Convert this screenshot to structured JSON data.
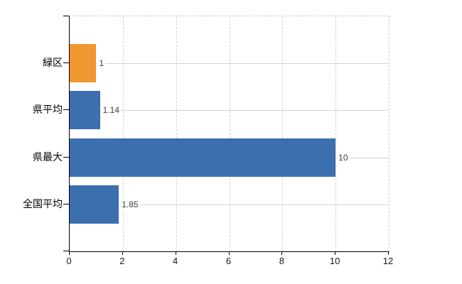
{
  "colors": {
    "background": "#ffffff",
    "bar_blue": "#3b6fae",
    "bar_orange": "#ef9730",
    "axis_line": "#000000",
    "grid_solid": "#d4d4d4",
    "grid_dashed": "#d2d2d2",
    "category_text": "#000000",
    "value_text": "#3c3c3c",
    "tick_text": "#1a1a1a"
  },
  "chart_data": {
    "type": "bar",
    "orientation": "horizontal",
    "title": "",
    "xlabel": "",
    "ylabel": "",
    "legend": "none",
    "grid": "vertical dashed at x ticks; horizontal solid at category centers",
    "categories": [
      "緑区",
      "県平均",
      "県最大",
      "全国平均"
    ],
    "values": [
      1,
      1.14,
      10,
      1.85
    ],
    "value_labels": [
      "1",
      "1.14",
      "10",
      "1.85"
    ],
    "bar_colors": [
      "#ef9730",
      "#3b6fae",
      "#3b6fae",
      "#3b6fae"
    ],
    "xlim": [
      0,
      12
    ],
    "x_ticks": [
      0,
      2,
      4,
      6,
      8,
      10,
      12
    ],
    "x_tick_labels": [
      "0",
      "2",
      "4",
      "6",
      "8",
      "10",
      "12"
    ]
  }
}
